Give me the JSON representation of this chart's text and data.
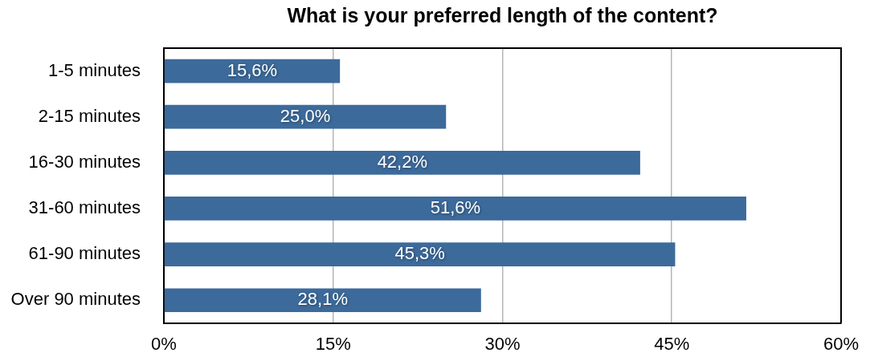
{
  "chart_data": {
    "type": "bar",
    "orientation": "horizontal",
    "title": "What is your preferred length of the content?",
    "categories": [
      "1-5 minutes",
      "2-15 minutes",
      "16-30 minutes",
      "31-60 minutes",
      "61-90 minutes",
      "Over 90 minutes"
    ],
    "values": [
      15.6,
      25.0,
      42.2,
      51.6,
      45.3,
      28.1
    ],
    "color": "#3c6a9b",
    "value_labels": [
      "15,6%",
      "25,0%",
      "42,2%",
      "51,6%",
      "45,3%",
      "28,1%"
    ],
    "xlim": [
      0,
      60
    ],
    "xticks": [
      {
        "value": 0,
        "label": "0%"
      },
      {
        "value": 15,
        "label": "15%"
      },
      {
        "value": 30,
        "label": "30%"
      },
      {
        "value": 45,
        "label": "45%"
      },
      {
        "value": 60,
        "label": "60%"
      }
    ],
    "grid": "x",
    "legend": false
  }
}
